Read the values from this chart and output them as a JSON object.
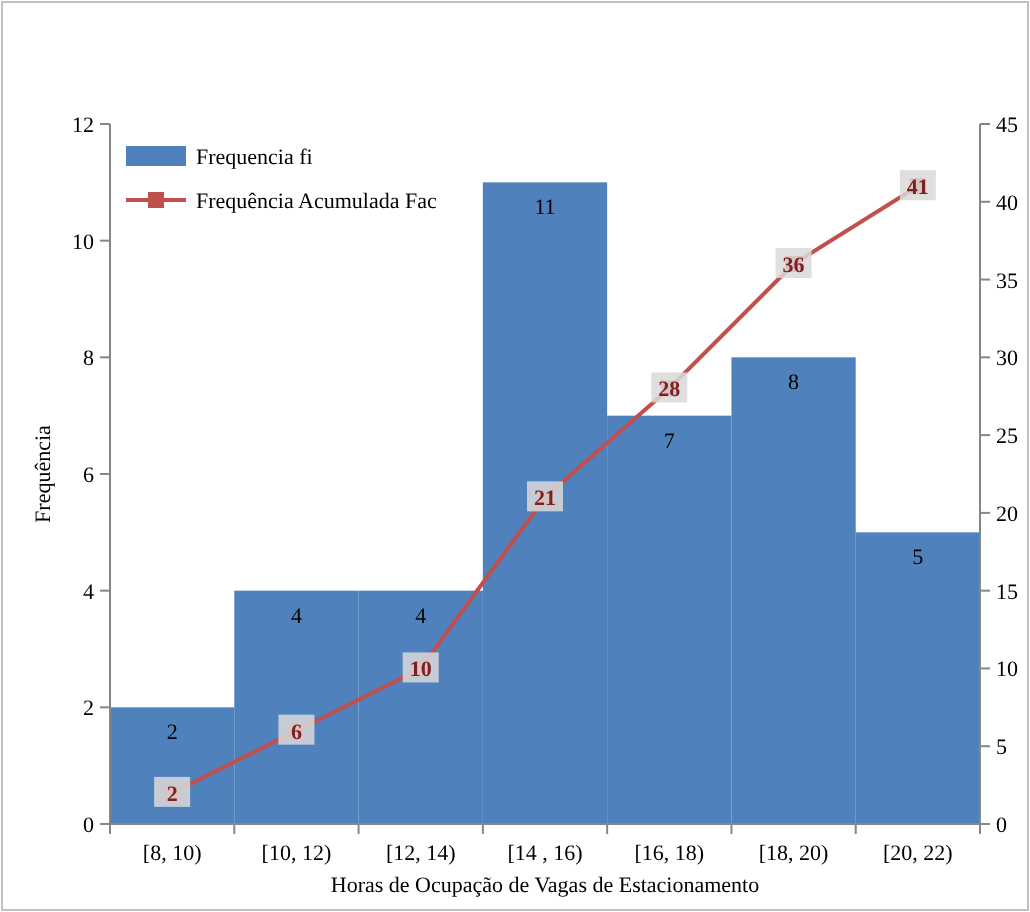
{
  "chart_data": {
    "type": "bar",
    "xlabel": "Horas de Ocupação de Vagas de Estacionamento",
    "ylabel": "Frequência",
    "categories": [
      "[8, 10)",
      "[10, 12)",
      "[12, 14)",
      "[14 , 16)",
      "[16, 18)",
      "[18, 20)",
      "[20, 22)"
    ],
    "series": [
      {
        "name": "Frequencia fi",
        "color": "#4f81bd",
        "values": [
          2,
          4,
          4,
          11,
          7,
          8,
          5
        ]
      },
      {
        "name": "Frequência Acumulada Fac",
        "type": "line",
        "axis": "y2",
        "color": "#c0504d",
        "marker": "square",
        "values": [
          2,
          6,
          10,
          21,
          28,
          36,
          41
        ]
      }
    ],
    "ylim": [
      0,
      12
    ],
    "yticks": [
      0,
      2,
      4,
      6,
      8,
      10,
      12
    ],
    "y2lim": [
      0,
      45
    ],
    "y2ticks": [
      0,
      5,
      10,
      15,
      20,
      25,
      30,
      35,
      40,
      45
    ],
    "data_labels": true,
    "legend": "top left",
    "grid": false
  }
}
